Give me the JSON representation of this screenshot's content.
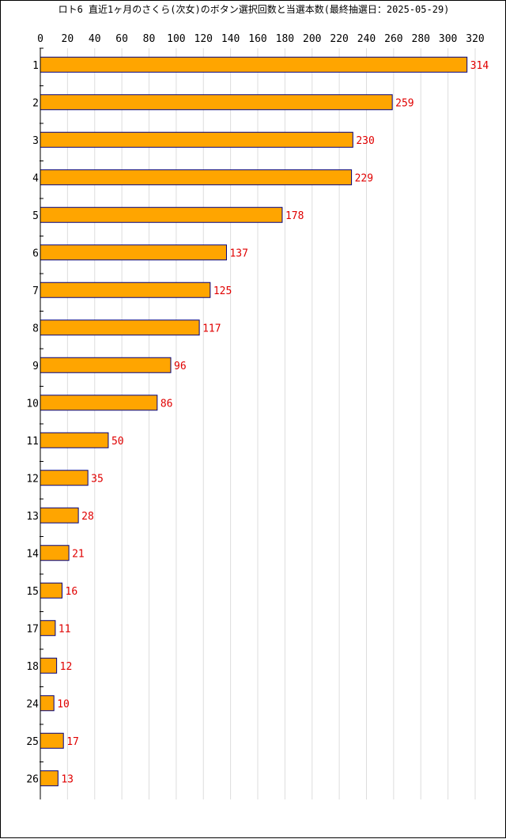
{
  "chart_data": {
    "type": "bar",
    "orientation": "horizontal",
    "title": "ロト6 直近1ヶ月のさくら(次女)のボタン選択回数と当選本数(最終抽選日：2025-05-29)",
    "categories": [
      "1",
      "2",
      "3",
      "4",
      "5",
      "6",
      "7",
      "8",
      "9",
      "10",
      "11",
      "12",
      "13",
      "14",
      "15",
      "17",
      "18",
      "24",
      "25",
      "26"
    ],
    "values": [
      314,
      259,
      230,
      229,
      178,
      137,
      125,
      117,
      96,
      86,
      50,
      35,
      28,
      21,
      16,
      11,
      12,
      10,
      17,
      13
    ],
    "xlim": [
      0,
      320
    ],
    "xticks": [
      0,
      20,
      40,
      60,
      80,
      100,
      120,
      140,
      160,
      180,
      200,
      220,
      240,
      260,
      280,
      300,
      320
    ],
    "x_axis_position": "top",
    "grid": true,
    "data_labels": true,
    "colors": {
      "bar_fill": "#ffa500",
      "bar_stroke": "#000080",
      "label": "#e00000",
      "grid": "#dddddd",
      "axis": "#000000"
    }
  }
}
